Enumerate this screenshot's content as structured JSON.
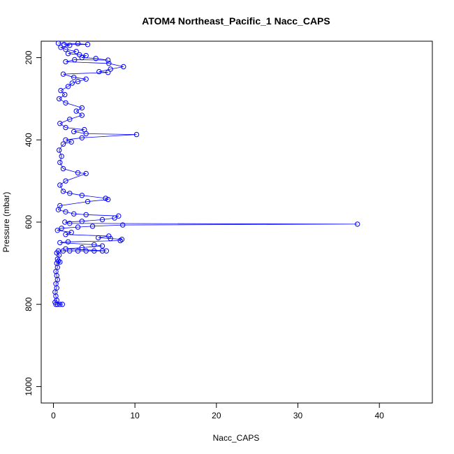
{
  "chart_data": {
    "type": "scatter",
    "title": "ATOM4 Northeast_Pacific_1 Nacc_CAPS",
    "xlabel": "Nacc_CAPS",
    "ylabel": "Pressure (mbar)",
    "xlim": [
      -1.5,
      46.5
    ],
    "ylim": [
      1040,
      160
    ],
    "y_reversed": true,
    "grid": false,
    "legend": "none",
    "colors": {
      "series": "#0000ff",
      "axis": "#000000"
    },
    "x_ticks": [
      0,
      10,
      20,
      30,
      40
    ],
    "y_ticks": [
      200,
      400,
      600,
      800,
      1000
    ],
    "series": [
      {
        "marker": "open-circle",
        "connected": true,
        "points": [
          [
            0.3,
            800
          ],
          [
            0.5,
            800
          ],
          [
            0.8,
            800
          ],
          [
            1.1,
            800
          ],
          [
            0.2,
            795
          ],
          [
            0.4,
            790
          ],
          [
            0.3,
            780
          ],
          [
            0.2,
            770
          ],
          [
            0.4,
            760
          ],
          [
            0.3,
            750
          ],
          [
            0.5,
            740
          ],
          [
            0.4,
            730
          ],
          [
            0.3,
            720
          ],
          [
            0.5,
            710
          ],
          [
            0.4,
            700
          ],
          [
            0.8,
            697
          ],
          [
            0.6,
            695
          ],
          [
            0.5,
            690
          ],
          [
            0.7,
            680
          ],
          [
            0.4,
            675
          ],
          [
            0.6,
            670
          ],
          [
            1.2,
            670
          ],
          [
            2.0,
            670
          ],
          [
            3.0,
            670
          ],
          [
            4.0,
            670
          ],
          [
            5.0,
            670
          ],
          [
            6.0,
            670
          ],
          [
            6.5,
            670
          ],
          [
            1.5,
            665
          ],
          [
            3.5,
            662
          ],
          [
            6.0,
            658
          ],
          [
            5.0,
            655
          ],
          [
            0.8,
            650
          ],
          [
            1.8,
            648
          ],
          [
            8.2,
            645
          ],
          [
            8.4,
            642
          ],
          [
            7.0,
            640
          ],
          [
            5.5,
            638
          ],
          [
            6.8,
            634
          ],
          [
            1.5,
            630
          ],
          [
            2.2,
            625
          ],
          [
            0.5,
            620
          ],
          [
            1.0,
            615
          ],
          [
            3.0,
            612
          ],
          [
            4.8,
            610
          ],
          [
            8.5,
            607
          ],
          [
            37.3,
            605
          ],
          [
            2.0,
            603
          ],
          [
            1.4,
            600
          ],
          [
            3.5,
            598
          ],
          [
            6.0,
            594
          ],
          [
            7.5,
            590
          ],
          [
            8.0,
            585
          ],
          [
            4.0,
            582
          ],
          [
            2.5,
            580
          ],
          [
            1.5,
            575
          ],
          [
            0.6,
            570
          ],
          [
            0.8,
            560
          ],
          [
            4.2,
            550
          ],
          [
            6.7,
            545
          ],
          [
            6.4,
            542
          ],
          [
            3.5,
            535
          ],
          [
            2.0,
            530
          ],
          [
            1.2,
            525
          ],
          [
            0.8,
            510
          ],
          [
            1.5,
            500
          ],
          [
            4.0,
            482
          ],
          [
            3.0,
            480
          ],
          [
            1.2,
            470
          ],
          [
            0.8,
            455
          ],
          [
            1.0,
            440
          ],
          [
            0.7,
            425
          ],
          [
            1.2,
            410
          ],
          [
            2.2,
            405
          ],
          [
            1.5,
            400
          ],
          [
            3.5,
            395
          ],
          [
            10.2,
            387
          ],
          [
            4.0,
            385
          ],
          [
            2.5,
            380
          ],
          [
            3.8,
            375
          ],
          [
            1.5,
            370
          ],
          [
            0.8,
            360
          ],
          [
            2.0,
            350
          ],
          [
            3.5,
            340
          ],
          [
            2.8,
            330
          ],
          [
            3.5,
            322
          ],
          [
            1.5,
            310
          ],
          [
            0.7,
            300
          ],
          [
            1.4,
            290
          ],
          [
            0.9,
            280
          ],
          [
            1.8,
            270
          ],
          [
            2.3,
            262
          ],
          [
            3.0,
            258
          ],
          [
            4.0,
            252
          ],
          [
            2.5,
            248
          ],
          [
            1.2,
            240
          ],
          [
            6.7,
            236
          ],
          [
            5.6,
            234
          ],
          [
            7.0,
            228
          ],
          [
            8.6,
            222
          ],
          [
            6.8,
            214
          ],
          [
            1.5,
            210
          ],
          [
            2.6,
            205
          ],
          [
            6.7,
            206
          ],
          [
            5.2,
            202
          ],
          [
            3.5,
            200
          ],
          [
            4.0,
            195
          ],
          [
            3.2,
            193
          ],
          [
            1.8,
            190
          ],
          [
            2.8,
            185
          ],
          [
            1.5,
            180
          ],
          [
            0.9,
            175
          ],
          [
            2.0,
            170
          ],
          [
            1.3,
            168
          ],
          [
            4.2,
            168
          ],
          [
            3.0,
            166
          ],
          [
            0.6,
            165
          ]
        ]
      }
    ]
  }
}
